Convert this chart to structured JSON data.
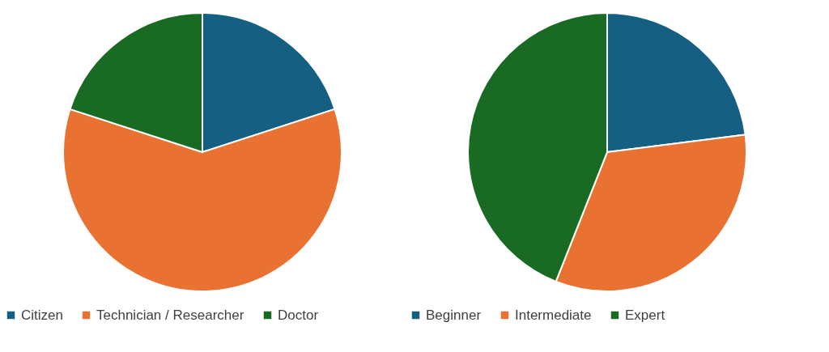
{
  "chart_data": [
    {
      "type": "pie",
      "categories": [
        "Citizen",
        "Technician / Researcher",
        "Doctor"
      ],
      "values": [
        20,
        60,
        20
      ],
      "colors": [
        "#156082",
        "#e97132",
        "#196b24"
      ],
      "legend": "bottom"
    },
    {
      "type": "pie",
      "categories": [
        "Beginner",
        "Intermediate",
        "Expert"
      ],
      "values": [
        23,
        33,
        44
      ],
      "colors": [
        "#156082",
        "#e97132",
        "#196b24"
      ],
      "legend": "bottom"
    }
  ]
}
